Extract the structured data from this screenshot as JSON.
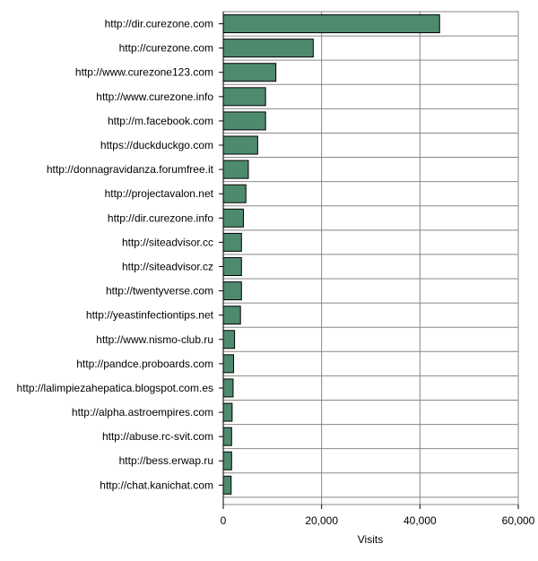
{
  "chart_data": {
    "type": "bar",
    "orientation": "horizontal",
    "categories": [
      "http://dir.curezone.com",
      "http://curezone.com",
      "http://www.curezone123.com",
      "http://www.curezone.info",
      "http://m.facebook.com",
      "https://duckduckgo.com",
      "http://donnagravidanza.forumfree.it",
      "http://projectavalon.net",
      "http://dir.curezone.info",
      "http://siteadvisor.cc",
      "http://siteadvisor.cz",
      "http://twentyverse.com",
      "http://yeastinfectiontips.net",
      "http://www.nismo-club.ru",
      "http://pandce.proboards.com",
      "http://lalimpiezahepatica.blogspot.com.es",
      "http://alpha.astroempires.com",
      "http://abuse.rc-svit.com",
      "http://bess.erwap.ru",
      "http://chat.kanichat.com"
    ],
    "values": [
      44000,
      18300,
      10700,
      8600,
      8600,
      7000,
      5100,
      4600,
      4100,
      3700,
      3700,
      3700,
      3500,
      2300,
      2100,
      2000,
      1800,
      1700,
      1700,
      1600
    ],
    "xlabel": "Visits",
    "ylabel": "",
    "title": "",
    "xlim": [
      0,
      60000
    ],
    "xticks": [
      "0",
      "20,000",
      "40,000",
      "60,000"
    ],
    "grid": true,
    "bar_color": "#4e8a6e",
    "bar_edge_color": "#000000",
    "grid_color": "#888888"
  }
}
